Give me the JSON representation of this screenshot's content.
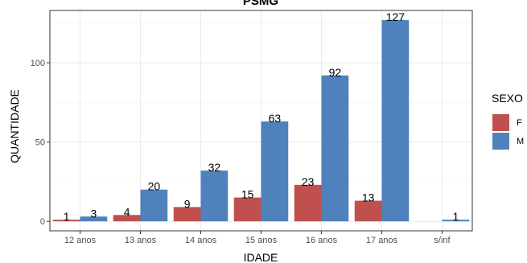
{
  "chart_data": {
    "type": "bar",
    "title": "PSMG",
    "xlabel": "IDADE",
    "ylabel": "QUANTIDADE",
    "categories": [
      "12 anos",
      "13 anos",
      "14 anos",
      "15 anos",
      "16 anos",
      "17 anos",
      "s/inf"
    ],
    "series": [
      {
        "name": "F",
        "color": "#c0504d",
        "values": [
          1,
          4,
          9,
          15,
          23,
          13,
          null
        ]
      },
      {
        "name": "M",
        "color": "#4f81bd",
        "values": [
          3,
          20,
          32,
          63,
          92,
          127,
          1
        ]
      }
    ],
    "yticks": [
      0,
      50,
      100
    ],
    "ylim": [
      -6,
      133
    ],
    "grid": true,
    "legend": {
      "title": "SEXO",
      "position": "right"
    }
  }
}
